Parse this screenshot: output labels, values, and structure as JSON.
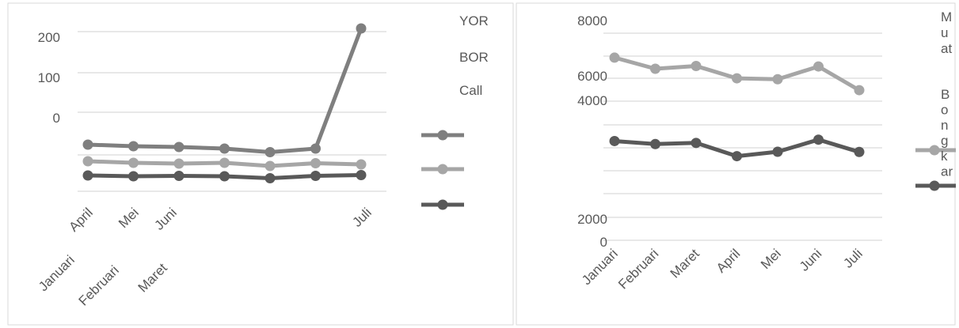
{
  "colors": {
    "frame": "#d9d9d9",
    "gridline": "#d9d9d9",
    "axis_text": "#595959",
    "series_dark": "#595959",
    "series_mid": "#7f7f7f",
    "series_light": "#a6a6a6"
  },
  "chart_data": [
    {
      "type": "line",
      "title": "",
      "xlabel": "",
      "ylabel": "",
      "grid": true,
      "legend_position": "right",
      "legend_text": [
        "YOR",
        "BOR",
        "Call"
      ],
      "y_tick_labels": [
        "200",
        "100",
        "0"
      ],
      "x_tick_labels": [
        {
          "text": "April"
        },
        {
          "text": "Mei"
        },
        {
          "text": "Juni"
        },
        {
          "text": "Juli"
        },
        {
          "text": "Januari"
        },
        {
          "text": "Februari"
        },
        {
          "text": "Maret"
        }
      ],
      "x": [
        "Januari",
        "Februari",
        "Maret",
        "April",
        "Mei",
        "Juni",
        "Juli"
      ],
      "ylim": [
        -150,
        250
      ],
      "series": [
        {
          "color": "#7f7f7f",
          "values": [
            -58,
            -62,
            -64,
            -68,
            -77,
            -68,
            236
          ]
        },
        {
          "color": "#a6a6a6",
          "values": [
            -100,
            -104,
            -106,
            -104,
            -112,
            -105,
            -108
          ]
        },
        {
          "color": "#595959",
          "values": [
            -136,
            -138,
            -137,
            -138,
            -143,
            -137,
            -135
          ]
        }
      ]
    },
    {
      "type": "line",
      "title": "",
      "xlabel": "",
      "ylabel": "",
      "grid": true,
      "legend_position": "right",
      "legend_text": [
        "Muat",
        "Bongkar"
      ],
      "y_tick_labels": [
        "8000",
        "6000",
        "4000",
        "2000",
        "0"
      ],
      "categories": [
        "Januari",
        "Februari",
        "Maret",
        "April",
        "Mei",
        "Juni",
        "Juli"
      ],
      "ylim": [
        0,
        9000
      ],
      "series": [
        {
          "color": "#a6a6a6",
          "values": [
            7860,
            7380,
            7500,
            6970,
            6930,
            7480,
            6460
          ]
        },
        {
          "color": "#595959",
          "values": [
            4270,
            4140,
            4190,
            3620,
            3810,
            4330,
            3800
          ]
        }
      ]
    }
  ]
}
